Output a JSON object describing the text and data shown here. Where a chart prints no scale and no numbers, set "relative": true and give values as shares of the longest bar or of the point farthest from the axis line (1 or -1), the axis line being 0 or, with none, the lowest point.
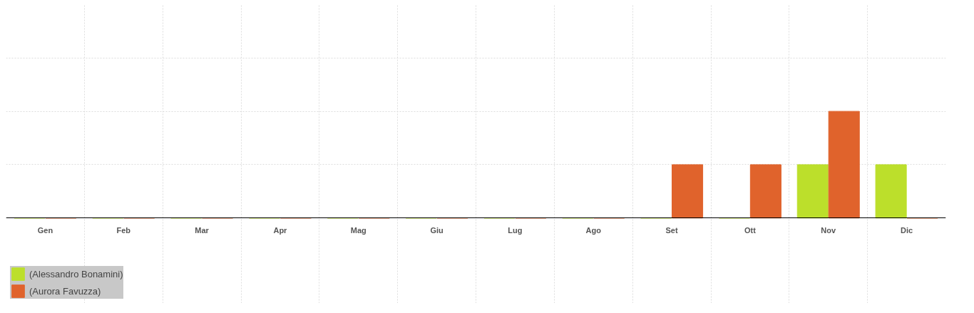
{
  "chart_data": {
    "type": "bar",
    "relative": true,
    "categories": [
      "Gen",
      "Feb",
      "Mar",
      "Apr",
      "Mag",
      "Giu",
      "Lug",
      "Ago",
      "Set",
      "Ott",
      "Nov",
      "Dic"
    ],
    "series": [
      {
        "name": "(Alessandro Bonamini)",
        "color": "#bcdf2b",
        "values": [
          0,
          0,
          0,
          0,
          0,
          0,
          0,
          0,
          0,
          0,
          0.5,
          0.5
        ]
      },
      {
        "name": "(Aurora Favuzza)",
        "color": "#e0632c",
        "values": [
          0,
          0,
          0,
          0,
          0,
          0,
          0,
          0,
          0.5,
          0.5,
          1,
          0
        ]
      }
    ],
    "grid": true,
    "legend": "bottom left"
  }
}
